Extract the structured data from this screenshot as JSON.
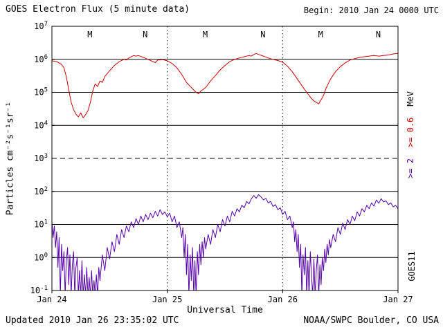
{
  "header": {
    "title": "GOES Electron Flux (5 minute data)",
    "begin": "Begin: 2010 Jan 24 0000 UTC"
  },
  "footer": {
    "updated": "Updated 2010 Jan 26 23:35:02 UTC",
    "credit": "NOAA/SWPC Boulder, CO USA"
  },
  "right_labels": {
    "ge2": ">= 2",
    "ge06": ">= 0.6",
    "unit": "MeV",
    "satellite": "GOES11"
  },
  "colors": {
    "red": "#cc0000",
    "purple": "#5500aa",
    "axis": "#000000",
    "background": "#ffffff"
  },
  "chart_data": {
    "type": "line",
    "title": "GOES Electron Flux (5 minute data)",
    "xlabel": "Universal Time",
    "ylabel": "Particles cm⁻²s⁻¹sr⁻¹",
    "x_unit": "hours since 2010 Jan 24 0000 UTC",
    "x_range": [
      0,
      72
    ],
    "y_scale": "log10",
    "y_range": [
      0.1,
      10000000
    ],
    "alert_threshold": 1000,
    "grid": "solid horizontal line each decade, dashed at 10^3, dotted vertical line each day boundary",
    "x_ticks": [
      {
        "hour": 0,
        "label": "Jan 24"
      },
      {
        "hour": 24,
        "label": "Jan 25"
      },
      {
        "hour": 48,
        "label": "Jan 26"
      },
      {
        "hour": 72,
        "label": "Jan 27"
      }
    ],
    "noon_midnight_markers": [
      {
        "label": "M",
        "hour": 7.9
      },
      {
        "label": "N",
        "hour": 19.4
      },
      {
        "label": "M",
        "hour": 31.9
      },
      {
        "label": "N",
        "hour": 43.9
      },
      {
        "label": "M",
        "hour": 55.9
      },
      {
        "label": "N",
        "hour": 67.9
      }
    ],
    "series": [
      {
        "name": ">= 0.6 MeV electrons",
        "key": "ge06",
        "color": "#cc0000",
        "points": [
          [
            0,
            900000.0
          ],
          [
            1,
            850000.0
          ],
          [
            2,
            700000.0
          ],
          [
            2.5,
            550000.0
          ],
          [
            3,
            300000.0
          ],
          [
            3.5,
            120000.0
          ],
          [
            4,
            50000.0
          ],
          [
            4.5,
            30000.0
          ],
          [
            5,
            22000.0
          ],
          [
            5.5,
            18000.0
          ],
          [
            6,
            24000.0
          ],
          [
            6.5,
            17000.0
          ],
          [
            7,
            21000.0
          ],
          [
            7.5,
            28000.0
          ],
          [
            8,
            50000.0
          ],
          [
            8.5,
            110000.0
          ],
          [
            9,
            180000.0
          ],
          [
            9.5,
            150000.0
          ],
          [
            10,
            220000.0
          ],
          [
            10.5,
            200000.0
          ],
          [
            11,
            300000.0
          ],
          [
            12,
            450000.0
          ],
          [
            13,
            650000.0
          ],
          [
            14,
            850000.0
          ],
          [
            15,
            1000000.0
          ],
          [
            15.5,
            950000.0
          ],
          [
            16,
            1100000.0
          ],
          [
            17,
            1300000.0
          ],
          [
            17.5,
            1250000.0
          ],
          [
            18,
            1300000.0
          ],
          [
            19,
            1150000.0
          ],
          [
            20,
            1000000.0
          ],
          [
            21,
            850000.0
          ],
          [
            21.5,
            800000.0
          ],
          [
            22,
            950000.0
          ],
          [
            23,
            980000.0
          ],
          [
            24,
            900000.0
          ],
          [
            25,
            750000.0
          ],
          [
            26,
            550000.0
          ],
          [
            27,
            350000.0
          ],
          [
            28,
            200000.0
          ],
          [
            29,
            140000.0
          ],
          [
            30,
            100000.0
          ],
          [
            30.5,
            90000.0
          ],
          [
            31,
            110000.0
          ],
          [
            32,
            140000.0
          ],
          [
            33,
            220000.0
          ],
          [
            34,
            320000.0
          ],
          [
            35,
            480000.0
          ],
          [
            36,
            650000.0
          ],
          [
            37,
            850000.0
          ],
          [
            38,
            1000000.0
          ],
          [
            39,
            1100000.0
          ],
          [
            40,
            1200000.0
          ],
          [
            41,
            1300000.0
          ],
          [
            41.5,
            1250000.0
          ],
          [
            42,
            1400000.0
          ],
          [
            42.5,
            1500000.0
          ],
          [
            43,
            1400000.0
          ],
          [
            44,
            1250000.0
          ],
          [
            45,
            1100000.0
          ],
          [
            46,
            1000000.0
          ],
          [
            47,
            920000.0
          ],
          [
            48,
            820000.0
          ],
          [
            49,
            620000.0
          ],
          [
            50,
            420000.0
          ],
          [
            51,
            260000.0
          ],
          [
            52,
            160000.0
          ],
          [
            53,
            100000.0
          ],
          [
            54,
            65000.0
          ],
          [
            54.5,
            55000.0
          ],
          [
            55,
            50000.0
          ],
          [
            55.5,
            45000.0
          ],
          [
            56,
            60000.0
          ],
          [
            56.5,
            80000.0
          ],
          [
            57,
            130000.0
          ],
          [
            58,
            260000.0
          ],
          [
            59,
            420000.0
          ],
          [
            60,
            600000.0
          ],
          [
            61,
            780000.0
          ],
          [
            62,
            950000.0
          ],
          [
            63,
            1050000.0
          ],
          [
            64,
            1150000.0
          ],
          [
            65,
            1200000.0
          ],
          [
            66,
            1250000.0
          ],
          [
            67,
            1300000.0
          ],
          [
            68,
            1250000.0
          ],
          [
            69,
            1300000.0
          ],
          [
            70,
            1350000.0
          ],
          [
            71,
            1450000.0
          ],
          [
            72,
            1500000.0
          ]
        ]
      },
      {
        "name": ">= 2 MeV electrons",
        "key": "ge2",
        "color": "#5500aa",
        "points": [
          [
            0,
            12
          ],
          [
            0.25,
            4
          ],
          [
            0.5,
            9
          ],
          [
            0.75,
            2
          ],
          [
            1,
            6
          ],
          [
            1.25,
            0.5
          ],
          [
            1.5,
            4
          ],
          [
            1.75,
            0.07
          ],
          [
            2,
            2.5
          ],
          [
            2.25,
            0.4
          ],
          [
            2.5,
            1.5
          ],
          [
            2.75,
            0.07
          ],
          [
            3,
            0.8
          ],
          [
            3.25,
            2
          ],
          [
            3.5,
            0.15
          ],
          [
            3.75,
            1.2
          ],
          [
            4,
            0.07
          ],
          [
            4.25,
            0.6
          ],
          [
            4.5,
            1.5
          ],
          [
            4.75,
            0.07
          ],
          [
            5,
            0.5
          ],
          [
            5.25,
            1
          ],
          [
            5.5,
            0.07
          ],
          [
            5.75,
            0.4
          ],
          [
            6,
            0.07
          ],
          [
            6.25,
            0.8
          ],
          [
            6.5,
            0.07
          ],
          [
            6.75,
            0.3
          ],
          [
            7,
            0.07
          ],
          [
            7.25,
            0.5
          ],
          [
            7.5,
            0.07
          ],
          [
            7.75,
            0.25
          ],
          [
            8,
            0.07
          ],
          [
            8.25,
            0.4
          ],
          [
            8.5,
            0.07
          ],
          [
            8.75,
            0.2
          ],
          [
            9,
            0.07
          ],
          [
            9.25,
            0.3
          ],
          [
            9.5,
            0.07
          ],
          [
            9.75,
            0.5
          ],
          [
            10,
            0.2
          ],
          [
            10.5,
            1.2
          ],
          [
            11,
            0.4
          ],
          [
            11.5,
            2
          ],
          [
            12,
            0.9
          ],
          [
            12.5,
            3
          ],
          [
            13,
            1.5
          ],
          [
            13.5,
            5
          ],
          [
            14,
            2.5
          ],
          [
            14.5,
            7
          ],
          [
            15,
            4
          ],
          [
            15.5,
            9
          ],
          [
            16,
            6
          ],
          [
            16.5,
            12
          ],
          [
            17,
            8
          ],
          [
            17.5,
            15
          ],
          [
            18,
            10
          ],
          [
            18.5,
            18
          ],
          [
            19,
            12
          ],
          [
            19.5,
            20
          ],
          [
            20,
            14
          ],
          [
            20.5,
            22
          ],
          [
            21,
            16
          ],
          [
            21.5,
            25
          ],
          [
            22,
            18
          ],
          [
            22.5,
            28
          ],
          [
            23,
            20
          ],
          [
            23.5,
            24
          ],
          [
            24,
            17
          ],
          [
            24.5,
            22
          ],
          [
            25,
            12
          ],
          [
            25.5,
            18
          ],
          [
            26,
            8
          ],
          [
            26.5,
            12
          ],
          [
            27,
            4
          ],
          [
            27.25,
            8
          ],
          [
            27.5,
            1
          ],
          [
            27.75,
            5
          ],
          [
            28,
            0.3
          ],
          [
            28.25,
            2.5
          ],
          [
            28.5,
            0.07
          ],
          [
            28.75,
            1.2
          ],
          [
            29,
            0.2
          ],
          [
            29.25,
            2
          ],
          [
            29.5,
            0.07
          ],
          [
            29.75,
            0.8
          ],
          [
            30,
            0.07
          ],
          [
            30.25,
            1.5
          ],
          [
            30.5,
            0.3
          ],
          [
            30.75,
            2.5
          ],
          [
            31,
            0.6
          ],
          [
            31.25,
            3
          ],
          [
            31.5,
            1
          ],
          [
            31.75,
            4
          ],
          [
            32,
            1.8
          ],
          [
            32.5,
            5
          ],
          [
            33,
            2.5
          ],
          [
            33.5,
            7
          ],
          [
            34,
            4
          ],
          [
            34.5,
            10
          ],
          [
            35,
            6
          ],
          [
            35.5,
            14
          ],
          [
            36,
            9
          ],
          [
            36.5,
            18
          ],
          [
            37,
            12
          ],
          [
            37.5,
            25
          ],
          [
            38,
            18
          ],
          [
            38.5,
            30
          ],
          [
            39,
            24
          ],
          [
            39.5,
            38
          ],
          [
            40,
            32
          ],
          [
            40.5,
            50
          ],
          [
            41,
            42
          ],
          [
            41.5,
            60
          ],
          [
            42,
            75
          ],
          [
            42.5,
            62
          ],
          [
            43,
            80
          ],
          [
            43.5,
            68
          ],
          [
            44,
            55
          ],
          [
            44.5,
            62
          ],
          [
            45,
            45
          ],
          [
            45.5,
            50
          ],
          [
            46,
            35
          ],
          [
            46.5,
            40
          ],
          [
            47,
            28
          ],
          [
            47.5,
            32
          ],
          [
            48,
            20
          ],
          [
            48.5,
            25
          ],
          [
            49,
            14
          ],
          [
            49.5,
            18
          ],
          [
            50,
            8
          ],
          [
            50.25,
            12
          ],
          [
            50.5,
            3
          ],
          [
            50.75,
            7
          ],
          [
            51,
            1.5
          ],
          [
            51.25,
            5
          ],
          [
            51.5,
            0.5
          ],
          [
            51.75,
            2.5
          ],
          [
            52,
            0.07
          ],
          [
            52.25,
            1.2
          ],
          [
            52.5,
            0.3
          ],
          [
            52.75,
            2
          ],
          [
            53,
            0.07
          ],
          [
            53.25,
            0.8
          ],
          [
            53.5,
            0.07
          ],
          [
            53.75,
            1.5
          ],
          [
            54,
            0.3
          ],
          [
            54.25,
            0.07
          ],
          [
            54.5,
            0.9
          ],
          [
            54.75,
            0.07
          ],
          [
            55,
            0.4
          ],
          [
            55.25,
            1.2
          ],
          [
            55.5,
            0.07
          ],
          [
            55.75,
            0.6
          ],
          [
            56,
            0.15
          ],
          [
            56.25,
            1
          ],
          [
            56.5,
            0.4
          ],
          [
            56.75,
            1.8
          ],
          [
            57,
            0.7
          ],
          [
            57.25,
            2.5
          ],
          [
            57.5,
            1.2
          ],
          [
            57.75,
            3.5
          ],
          [
            58,
            2
          ],
          [
            58.5,
            5
          ],
          [
            59,
            3
          ],
          [
            59.5,
            8
          ],
          [
            60,
            5
          ],
          [
            60.5,
            11
          ],
          [
            61,
            7
          ],
          [
            61.5,
            14
          ],
          [
            62,
            10
          ],
          [
            62.5,
            18
          ],
          [
            63,
            13
          ],
          [
            63.5,
            24
          ],
          [
            64,
            18
          ],
          [
            64.5,
            30
          ],
          [
            65,
            24
          ],
          [
            65.5,
            38
          ],
          [
            66,
            30
          ],
          [
            66.5,
            45
          ],
          [
            67,
            36
          ],
          [
            67.5,
            55
          ],
          [
            68,
            44
          ],
          [
            68.5,
            60
          ],
          [
            69,
            48
          ],
          [
            69.5,
            52
          ],
          [
            70,
            40
          ],
          [
            70.5,
            45
          ],
          [
            71,
            34
          ],
          [
            71.5,
            38
          ],
          [
            72,
            30
          ]
        ]
      }
    ]
  }
}
